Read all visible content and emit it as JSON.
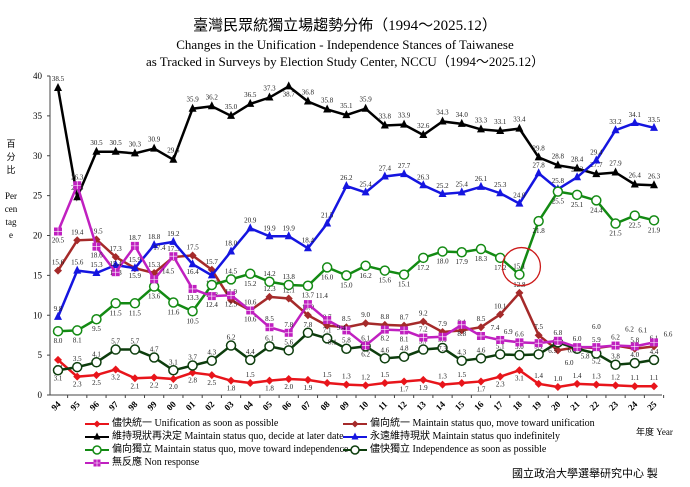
{
  "chart_data": {
    "type": "line",
    "title": "臺灣民眾統獨立場趨勢分佈（1994～2025.12）",
    "subtitle": "Changes in the Unification - Independence Stances of Taiwanese as Tracked in Surveys by Election Study Center, NCCU（1994～2025.12）",
    "subtitle_line1": "Changes in the Unification - Independence Stances of Taiwanese",
    "subtitle_line2": "as Tracked in Surveys by Election Study Center, NCCU（1994～2025.12）",
    "xlabel": "年度 Year",
    "ylabel_zh": "百分比",
    "ylabel_en": "Percentage",
    "ylim": [
      0,
      40
    ],
    "yticks": [
      0,
      5,
      10,
      15,
      20,
      25,
      30,
      35,
      40
    ],
    "grid": false,
    "legend_position": "bottom",
    "categories": [
      "94",
      "95",
      "96",
      "97",
      "98",
      "99",
      "00",
      "01",
      "02",
      "03",
      "04",
      "05",
      "06",
      "07",
      "08",
      "09",
      "10",
      "11",
      "12",
      "13",
      "14",
      "15",
      "16",
      "17",
      "18",
      "19",
      "20",
      "21",
      "22",
      "23",
      "24",
      "25"
    ],
    "series": [
      {
        "name": "儘快統一 Unification as soon as possible",
        "color": "#e8151b",
        "marker": "diamond",
        "values": [
          4.4,
          2.3,
          2.5,
          3.2,
          2.1,
          2.2,
          2.0,
          2.8,
          2.5,
          1.8,
          1.5,
          1.8,
          2.0,
          1.9,
          1.5,
          1.3,
          1.2,
          1.5,
          1.7,
          1.9,
          1.3,
          1.5,
          1.7,
          2.3,
          3.1,
          1.4,
          1.0,
          1.4,
          1.3,
          1.2,
          1.1,
          1.1
        ]
      },
      {
        "name": "偏向統一 Maintain status quo, move toward unification",
        "color": "#a52a2a",
        "marker": "diamond",
        "values": [
          15.6,
          19.4,
          19.5,
          17.3,
          15.9,
          15.3,
          17.3,
          17.5,
          15.7,
          11.9,
          10.6,
          12.3,
          12.1,
          10.0,
          8.7,
          8.5,
          9.0,
          8.8,
          8.7,
          9.2,
          7.9,
          8.1,
          8.5,
          10.1,
          12.8,
          7.5,
          5.6,
          6.0,
          5.9,
          6.2,
          5.8,
          6.1
        ]
      },
      {
        "name": "維持現狀再決定 Maintain status quo, decide at later date",
        "color": "#000000",
        "marker": "triangle",
        "values": [
          38.5,
          24.8,
          30.5,
          30.5,
          30.3,
          30.9,
          29.5,
          35.9,
          36.2,
          35.0,
          36.5,
          37.3,
          38.7,
          36.8,
          35.8,
          35.1,
          35.9,
          33.8,
          33.9,
          32.6,
          34.3,
          34.0,
          33.3,
          33.1,
          33.4,
          29.8,
          28.8,
          28.4,
          27.7,
          27.9,
          26.4,
          26.3
        ]
      },
      {
        "name": "永遠維持現狀 Maintain status quo indefinitely",
        "color": "#1515e0",
        "marker": "triangle",
        "values": [
          9.8,
          15.6,
          15.3,
          16.3,
          15.9,
          18.8,
          19.2,
          16.4,
          15.0,
          18.0,
          20.9,
          19.9,
          19.9,
          18.4,
          21.5,
          26.2,
          25.4,
          27.4,
          27.7,
          26.3,
          25.2,
          25.4,
          26.1,
          25.3,
          24.0,
          27.8,
          25.8,
          27.3,
          29.4,
          33.2,
          34.1,
          33.5
        ]
      },
      {
        "name": "偏向獨立 Maintain status quo, move toward independence",
        "color": "#138a13",
        "marker": "circle",
        "values": [
          8.0,
          8.1,
          9.5,
          11.5,
          11.5,
          13.6,
          11.6,
          10.5,
          13.8,
          14.5,
          15.2,
          14.2,
          13.8,
          13.7,
          16.0,
          15.0,
          16.2,
          15.6,
          15.1,
          17.2,
          18.0,
          17.9,
          18.3,
          17.2,
          15.1,
          21.8,
          25.5,
          25.1,
          24.4,
          21.5,
          22.5,
          21.9
        ]
      },
      {
        "name": "儘快獨立 Independence as soon as possible",
        "color": "#0d3d0d",
        "marker": "circle",
        "values": [
          3.1,
          3.5,
          4.1,
          5.7,
          5.7,
          4.7,
          3.1,
          3.7,
          4.3,
          6.2,
          4.4,
          6.1,
          5.6,
          7.8,
          7.1,
          5.8,
          6.1,
          4.6,
          4.8,
          5.7,
          5.9,
          4.3,
          4.6,
          5.1,
          5.0,
          5.1,
          6.6,
          5.8,
          5.2,
          3.8,
          4.0,
          4.4
        ]
      },
      {
        "name": "無反應 Non response",
        "color": "#c020c0",
        "marker": "square",
        "values": [
          20.5,
          26.3,
          18.6,
          15.4,
          18.7,
          14.5,
          17.4,
          13.3,
          12.4,
          12.5,
          10.6,
          8.5,
          7.8,
          11.4,
          9.4,
          8.1,
          6.2,
          8.2,
          8.1,
          7.2,
          7.3,
          8.8,
          7.4,
          6.9,
          6.6,
          6.5,
          6.8,
          6.0,
          6.0,
          6.2,
          6.1,
          6.6
        ]
      }
    ],
    "annotations": [
      {
        "type": "circle",
        "highlight_series": "偏向獨立 Maintain status quo, move toward independence",
        "category": "18"
      }
    ]
  },
  "legend": {
    "items": [
      {
        "label": "儘快統一 Unification as soon as possible"
      },
      {
        "label": "偏向統一 Maintain status quo, move toward unification"
      },
      {
        "label": "維持現狀再決定 Maintain status quo, decide at later date"
      },
      {
        "label": "永遠維持現狀 Maintain status quo indefinitely"
      },
      {
        "label": "偏向獨立 Maintain status quo, move toward independence"
      },
      {
        "label": "儘快獨立 Independence as soon as possible"
      },
      {
        "label": "無反應 Non response"
      }
    ]
  },
  "footer": "國立政治大學選舉研究中心 製"
}
